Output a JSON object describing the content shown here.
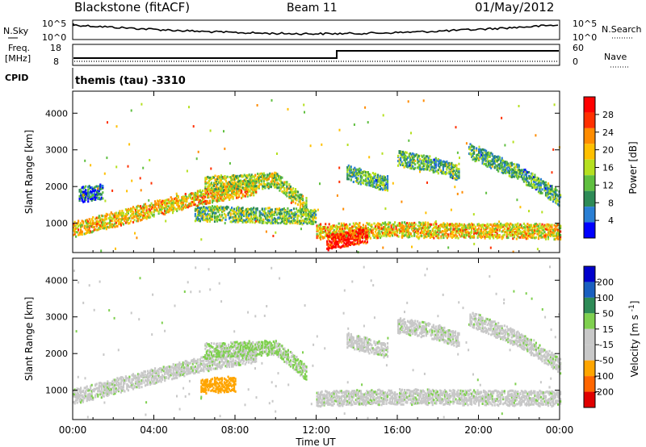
{
  "header": {
    "station": "Blackstone (fitACF)",
    "beam": "Beam 11",
    "date": "01/May/2012"
  },
  "noise_panel": {
    "left_label": "N.Sky",
    "right_label": "N.Search",
    "left_ticks": [
      "10^5",
      "10^0"
    ],
    "right_ticks": [
      "10^5",
      "10^0"
    ]
  },
  "freq_panel": {
    "left_label_1": "Freq.",
    "left_label_2": "[MHz]",
    "right_label": "Nave",
    "left_ticks": [
      "18",
      "8"
    ],
    "right_ticks": [
      "60",
      "0"
    ]
  },
  "cpid": {
    "label": "CPID",
    "value": "themis (tau) -3310"
  },
  "x_axis": {
    "title": "Time UT",
    "ticks": [
      "00:00",
      "04:00",
      "08:00",
      "12:00",
      "16:00",
      "20:00",
      "00:00"
    ]
  },
  "colors": {
    "power": [
      "#0000ff",
      "#2a7fd4",
      "#2e8b57",
      "#5fbf3f",
      "#b5e020",
      "#ffc000",
      "#ff8c00",
      "#ff3000",
      "#ff0000"
    ],
    "velocity": [
      "#e00000",
      "#ff6600",
      "#ffa500",
      "#c8c8c8",
      "#c8c8c8",
      "#7fd04f",
      "#2e8b57",
      "#1a5fbf",
      "#0000cc"
    ]
  },
  "chart_data": [
    {
      "type": "heatmap",
      "title": "",
      "ylabel": "Slant Range [km]",
      "xlabel": "",
      "ylim": [
        200,
        4600
      ],
      "yticks": [
        "4000",
        "3000",
        "2000",
        "1000"
      ],
      "colorbar": {
        "label": "Power [dB]",
        "ticks": [
          "28",
          "24",
          "20",
          "16",
          "12",
          "8",
          "4"
        ],
        "range": [
          0,
          30
        ]
      },
      "bands": [
        {
          "t": [
            0,
            6,
            9
          ],
          "r": [
            850,
            1700,
            2000
          ],
          "level": 18
        },
        {
          "t": [
            0.3,
            1.5
          ],
          "r": [
            1800,
            1900
          ],
          "level": 6
        },
        {
          "t": [
            6.5,
            10,
            11.5
          ],
          "r": [
            2100,
            2200,
            1500
          ],
          "level": 14
        },
        {
          "t": [
            6,
            9,
            12
          ],
          "r": [
            1300,
            1250,
            1200
          ],
          "level": 12
        },
        {
          "t": [
            12,
            16,
            24
          ],
          "r": [
            800,
            850,
            800
          ],
          "level": 18
        },
        {
          "t": [
            12.5,
            14.5
          ],
          "r": [
            500,
            700
          ],
          "level": 28
        },
        {
          "t": [
            13.5,
            15.5
          ],
          "r": [
            2400,
            2100
          ],
          "level": 10
        },
        {
          "t": [
            16,
            18,
            19
          ],
          "r": [
            2800,
            2600,
            2400
          ],
          "level": 10
        },
        {
          "t": [
            19.5,
            22,
            24
          ],
          "r": [
            3000,
            2400,
            1700
          ],
          "level": 10
        }
      ]
    },
    {
      "type": "heatmap",
      "title": "",
      "ylabel": "Slant Range [km]",
      "xlabel": "Time UT",
      "ylim": [
        200,
        4600
      ],
      "yticks": [
        "4000",
        "3000",
        "2000",
        "1000"
      ],
      "colorbar": {
        "label": "Velocity [m s^-1]",
        "ticks": [
          "200",
          "100",
          "50",
          "15",
          "-15",
          "-50",
          "-100",
          "-200"
        ],
        "range": [
          -250,
          250
        ]
      },
      "bands": [
        {
          "t": [
            0,
            6,
            9
          ],
          "r": [
            850,
            1700,
            2000
          ],
          "level": 0
        },
        {
          "t": [
            6.5,
            10,
            11.5
          ],
          "r": [
            2100,
            2200,
            1500
          ],
          "level": 20
        },
        {
          "t": [
            6.3,
            8
          ],
          "r": [
            1150,
            1200
          ],
          "level": -80
        },
        {
          "t": [
            12,
            16,
            24
          ],
          "r": [
            800,
            850,
            800
          ],
          "level": 0
        },
        {
          "t": [
            13.5,
            15.5
          ],
          "r": [
            2400,
            2100
          ],
          "level": 0
        },
        {
          "t": [
            16,
            18,
            19
          ],
          "r": [
            2800,
            2600,
            2400
          ],
          "level": 0
        },
        {
          "t": [
            19.5,
            22,
            24
          ],
          "r": [
            3000,
            2400,
            1700
          ],
          "level": 0
        }
      ]
    }
  ]
}
